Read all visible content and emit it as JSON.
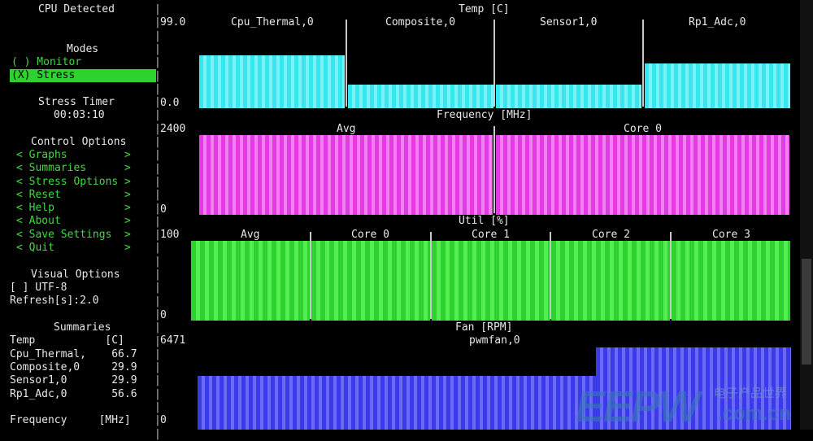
{
  "sidebar": {
    "cpu_detected": "CPU Detected",
    "modes_header": "Modes",
    "monitor": "( ) Monitor",
    "stress": "(X) Stress",
    "stress_timer_label": "Stress Timer",
    "stress_timer_value": "00:03:10",
    "control_options_header": "Control Options",
    "menu": [
      "< Graphs         >",
      "< Summaries      >",
      "< Stress Options >",
      "< Reset          >",
      "< Help           >",
      "< About          >",
      "< Save Settings  >",
      "< Quit           >"
    ],
    "visual_options_header": "Visual Options",
    "utf8": "[ ] UTF-8",
    "refresh": "Refresh[s]:2.0",
    "summaries_header": "Summaries",
    "temp_row": "Temp           [C]",
    "summary_rows": [
      "Cpu_Thermal,    66.7",
      "Composite,0     29.9",
      "Sensor1,0       29.9",
      "Rp1_Adc,0       56.6"
    ],
    "frequency_row": "Frequency     [MHz]"
  },
  "temp": {
    "title": "Temp [C]",
    "ymax": "99.0",
    "ymin": "0.0",
    "series": [
      {
        "name": "Cpu_Thermal,0",
        "value": 66.7
      },
      {
        "name": "Composite,0",
        "value": 29.9
      },
      {
        "name": "Sensor1,0",
        "value": 29.9
      },
      {
        "name": "Rp1_Adc,0",
        "value": 56.6
      }
    ]
  },
  "freq": {
    "title": "Frequency [MHz]",
    "ymax": "2400",
    "ymin": "0",
    "series": [
      {
        "name": "Avg",
        "value": 2400
      },
      {
        "name": "Core 0",
        "value": 2400
      }
    ]
  },
  "util": {
    "title": "Util [%]",
    "ymax": "100",
    "ymin": "0",
    "series": [
      {
        "name": "Avg",
        "value": 100
      },
      {
        "name": "Core 0",
        "value": 100
      },
      {
        "name": "Core 1",
        "value": 100
      },
      {
        "name": "Core 2",
        "value": 100
      },
      {
        "name": "Core 3",
        "value": 100
      }
    ]
  },
  "fan": {
    "title": "Fan [RPM]",
    "ymax": "6471",
    "ymin": "0",
    "series_name": "pwmfan,0",
    "levels": [
      {
        "value": 4200
      },
      {
        "value": 6471
      }
    ]
  },
  "watermark": {
    "brand": "EEPW",
    "cn": "电子产品世界",
    "url": ".com.cn"
  }
}
